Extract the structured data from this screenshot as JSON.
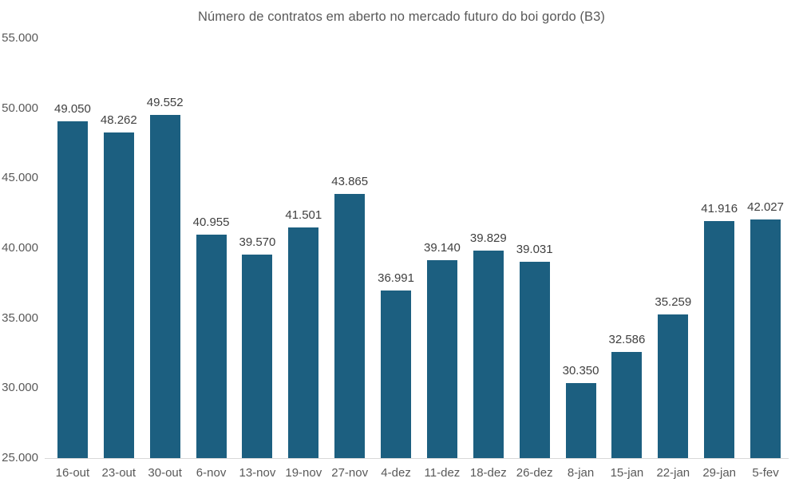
{
  "chart_data": {
    "type": "bar",
    "title": "Número de contratos em aberto no mercado futuro do boi gordo (B3)",
    "categories": [
      "16-out",
      "23-out",
      "30-out",
      "6-nov",
      "13-nov",
      "19-nov",
      "27-nov",
      "4-dez",
      "11-dez",
      "18-dez",
      "26-dez",
      "8-jan",
      "15-jan",
      "22-jan",
      "29-jan",
      "5-fev"
    ],
    "values": [
      49050,
      48262,
      49552,
      40955,
      39570,
      41501,
      43865,
      36991,
      39140,
      39829,
      39031,
      30350,
      32586,
      35259,
      41916,
      42027
    ],
    "value_labels": [
      "49.050",
      "48.262",
      "49.552",
      "40.955",
      "39.570",
      "41.501",
      "43.865",
      "36.991",
      "39.140",
      "39.829",
      "39.031",
      "30.350",
      "32.586",
      "35.259",
      "41.916",
      "42.027"
    ],
    "xlabel": "",
    "ylabel": "",
    "ylim": [
      25000,
      55000
    ],
    "ytick_step": 5000,
    "ytick_labels": [
      "55.000",
      "50.000",
      "45.000",
      "40.000",
      "35.000",
      "30.000",
      "25.000"
    ],
    "grid": false,
    "legend": "none",
    "bar_color": "#1c5f80",
    "axis_line_color": "#d9d9d9",
    "axis_label_color": "#595959",
    "value_label_color": "#404040"
  }
}
